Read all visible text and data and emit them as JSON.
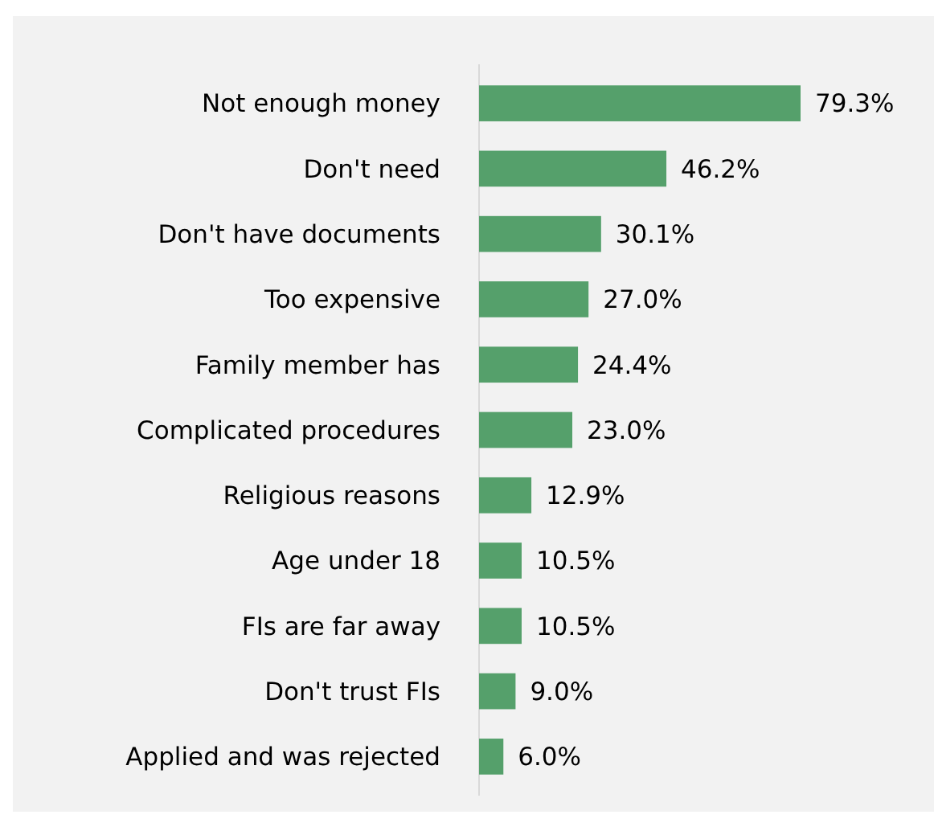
{
  "chart_data": {
    "type": "bar",
    "orientation": "horizontal",
    "categories": [
      "Not enough money",
      "Don't need",
      "Don't have documents",
      "Too expensive",
      "Family member has",
      "Complicated procedures",
      "Religious reasons",
      "Age under 18",
      "FIs are far away",
      "Don't trust FIs",
      "Applied and was rejected"
    ],
    "values": [
      79.3,
      46.2,
      30.1,
      27.0,
      24.4,
      23.0,
      12.9,
      10.5,
      10.5,
      9.0,
      6.0
    ],
    "value_labels": [
      "79.3%",
      "46.2%",
      "30.1%",
      "27.0%",
      "24.4%",
      "23.0%",
      "12.9%",
      "10.5%",
      "10.5%",
      "9.0%",
      "6.0%"
    ],
    "color": "#55a06b",
    "xlim": [
      0,
      79.3
    ],
    "tick_labels": "y"
  }
}
